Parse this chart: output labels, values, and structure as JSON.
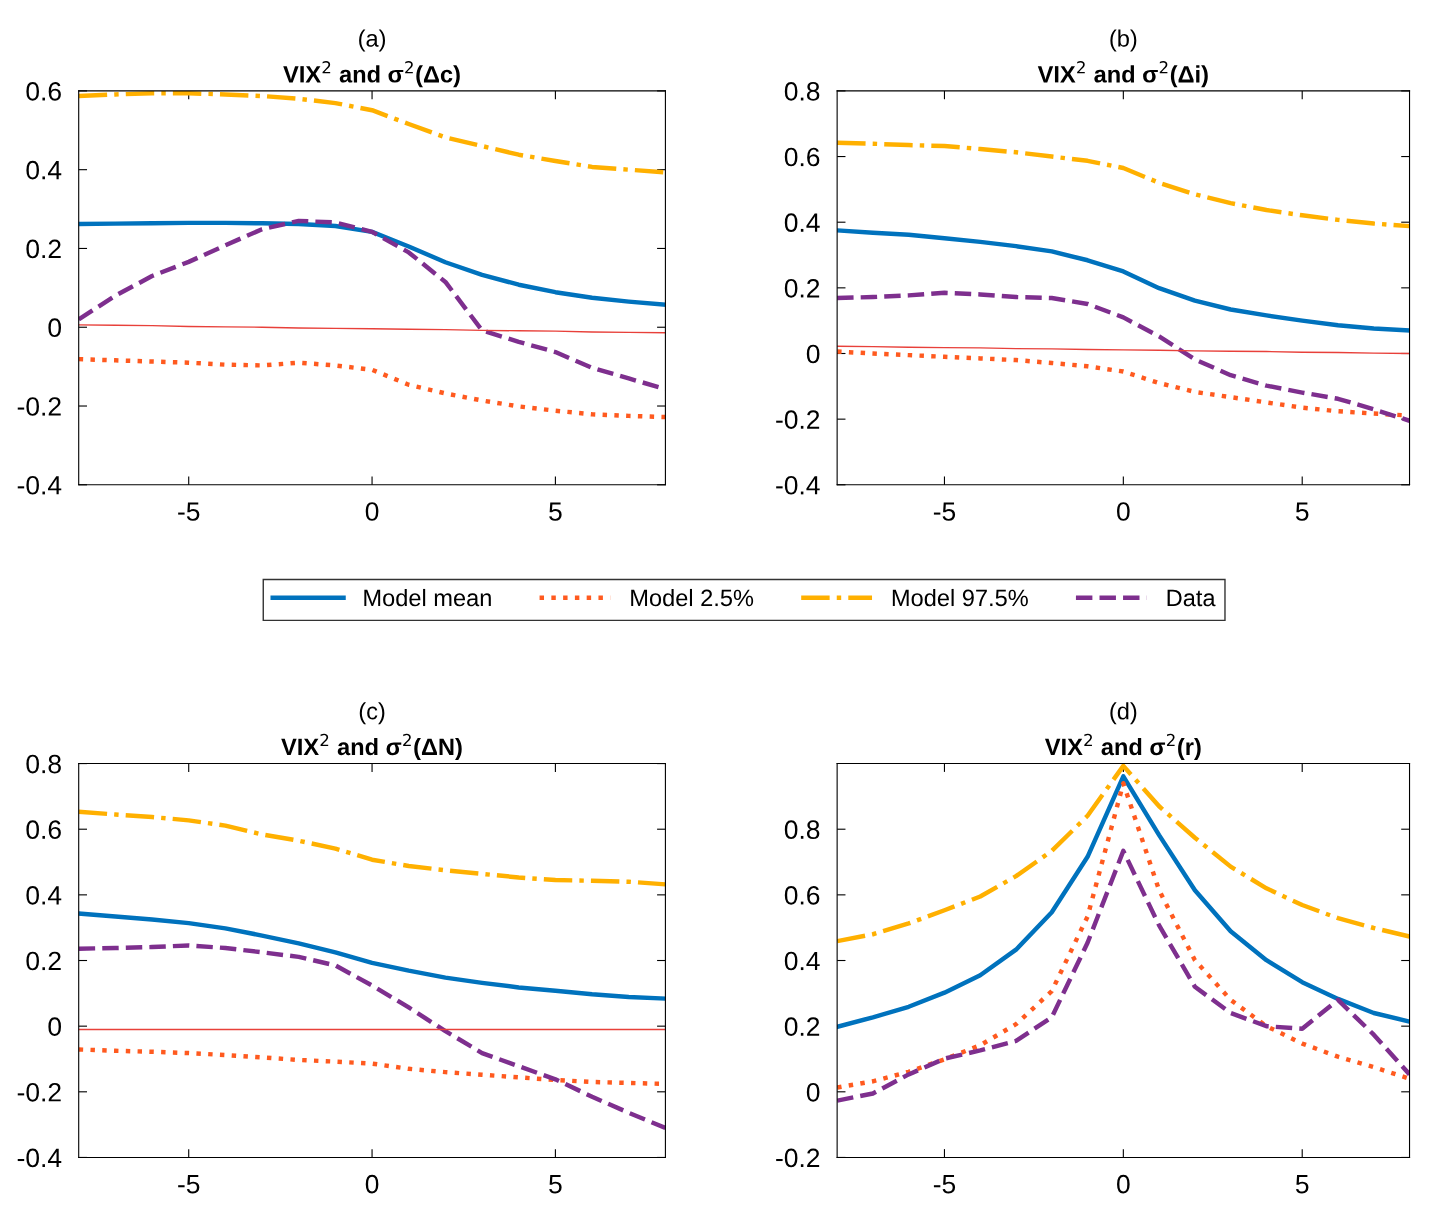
{
  "chart_data": [
    {
      "type": "line",
      "title": "(a)",
      "subtitle": "VIX$^{2}$ and σ$^{2}$(Δc)",
      "x": [
        -8,
        -7,
        -6,
        -5,
        -4,
        -3,
        -2,
        -1,
        0,
        1,
        2,
        3,
        4,
        5,
        6,
        7,
        8
      ],
      "xlim": [
        -8,
        8
      ],
      "xticks": [
        -5,
        0,
        5
      ],
      "ylim": [
        -0.4,
        0.6
      ],
      "yticks": [
        -0.4,
        -0.2,
        0,
        0.2,
        0.4,
        0.6
      ],
      "grid": false,
      "legend": "bottom",
      "series": [
        {
          "name": "Model mean",
          "color": "#0072bd",
          "line_style": "solid",
          "values": [
            0.262,
            0.263,
            0.264,
            0.265,
            0.265,
            0.264,
            0.262,
            0.257,
            0.242,
            0.205,
            0.165,
            0.133,
            0.108,
            0.089,
            0.075,
            0.065,
            0.057
          ]
        },
        {
          "name": "Model 2.5%",
          "color": "#ff5a1f",
          "line_style": "dotted",
          "values": [
            -0.081,
            -0.084,
            -0.087,
            -0.09,
            -0.095,
            -0.097,
            -0.09,
            -0.097,
            -0.108,
            -0.146,
            -0.168,
            -0.186,
            -0.201,
            -0.212,
            -0.221,
            -0.225,
            -0.228
          ]
        },
        {
          "name": "Model 97.5%",
          "color": "#ffb000",
          "line_style": "dashdot",
          "values": [
            0.587,
            0.591,
            0.594,
            0.594,
            0.591,
            0.587,
            0.58,
            0.569,
            0.551,
            0.516,
            0.482,
            0.46,
            0.438,
            0.422,
            0.407,
            0.4,
            0.393
          ]
        },
        {
          "name": "Data",
          "color": "#7e2f8e",
          "line_style": "dashed",
          "values": [
            0.02,
            0.08,
            0.13,
            0.166,
            0.208,
            0.249,
            0.27,
            0.266,
            0.242,
            0.19,
            0.115,
            -0.008,
            -0.037,
            -0.063,
            -0.103,
            -0.13,
            -0.157
          ]
        },
        {
          "color": "#e8403a",
          "line_style": "solid",
          "values": [
            0.006,
            0.005,
            0.004,
            0.002,
            0.001,
            0.0,
            -0.002,
            -0.003,
            -0.004,
            -0.005,
            -0.006,
            -0.008,
            -0.009,
            -0.01,
            -0.012,
            -0.013,
            -0.014
          ]
        }
      ]
    },
    {
      "type": "line",
      "title": "(b)",
      "subtitle": "VIX$^{2}$ and σ$^{2}$(Δi)",
      "x": [
        -8,
        -7,
        -6,
        -5,
        -4,
        -3,
        -2,
        -1,
        0,
        1,
        2,
        3,
        4,
        5,
        6,
        7,
        8
      ],
      "xlim": [
        -8,
        8
      ],
      "xticks": [
        -5,
        0,
        5
      ],
      "ylim": [
        -0.4,
        0.8
      ],
      "yticks": [
        -0.4,
        -0.2,
        0,
        0.2,
        0.4,
        0.6,
        0.8
      ],
      "grid": false,
      "series": [
        {
          "color": "#0072bd",
          "line_style": "solid",
          "values": [
            0.375,
            0.368,
            0.362,
            0.351,
            0.34,
            0.327,
            0.311,
            0.284,
            0.25,
            0.199,
            0.161,
            0.134,
            0.116,
            0.1,
            0.086,
            0.076,
            0.07
          ]
        },
        {
          "color": "#ff5a1f",
          "line_style": "dotted",
          "values": [
            0.006,
            0.0,
            -0.005,
            -0.01,
            -0.015,
            -0.02,
            -0.029,
            -0.039,
            -0.055,
            -0.09,
            -0.117,
            -0.133,
            -0.149,
            -0.165,
            -0.176,
            -0.183,
            -0.189
          ]
        },
        {
          "color": "#ffb000",
          "line_style": "dashdot",
          "values": [
            0.642,
            0.639,
            0.635,
            0.632,
            0.623,
            0.613,
            0.6,
            0.587,
            0.565,
            0.52,
            0.485,
            0.458,
            0.437,
            0.421,
            0.407,
            0.396,
            0.388
          ]
        },
        {
          "color": "#7e2f8e",
          "line_style": "dashed",
          "values": [
            0.169,
            0.172,
            0.177,
            0.185,
            0.18,
            0.172,
            0.169,
            0.151,
            0.11,
            0.052,
            -0.018,
            -0.066,
            -0.098,
            -0.119,
            -0.138,
            -0.17,
            -0.205
          ]
        },
        {
          "color": "#e8403a",
          "line_style": "solid",
          "values": [
            0.022,
            0.021,
            0.019,
            0.018,
            0.017,
            0.015,
            0.014,
            0.012,
            0.011,
            0.01,
            0.008,
            0.007,
            0.006,
            0.004,
            0.003,
            0.001,
            0.0
          ]
        }
      ]
    },
    {
      "type": "line",
      "title": "(c)",
      "subtitle": "VIX$^{2}$ and σ$^{2}$(ΔN)",
      "x": [
        -8,
        -7,
        -6,
        -5,
        -4,
        -3,
        -2,
        -1,
        0,
        1,
        2,
        3,
        4,
        5,
        6,
        7,
        8
      ],
      "xlim": [
        -8,
        8
      ],
      "xticks": [
        -5,
        0,
        5
      ],
      "ylim": [
        -0.4,
        0.8
      ],
      "yticks": [
        -0.4,
        -0.2,
        0,
        0.2,
        0.4,
        0.6,
        0.8
      ],
      "grid": false,
      "series": [
        {
          "color": "#0072bd",
          "line_style": "solid",
          "values": [
            0.343,
            0.334,
            0.325,
            0.314,
            0.298,
            0.276,
            0.252,
            0.225,
            0.193,
            0.169,
            0.148,
            0.132,
            0.118,
            0.108,
            0.097,
            0.089,
            0.084
          ]
        },
        {
          "color": "#ff5a1f",
          "line_style": "dotted",
          "values": [
            -0.071,
            -0.075,
            -0.078,
            -0.082,
            -0.088,
            -0.095,
            -0.103,
            -0.108,
            -0.114,
            -0.13,
            -0.14,
            -0.148,
            -0.156,
            -0.164,
            -0.17,
            -0.173,
            -0.176
          ]
        },
        {
          "color": "#ffb000",
          "line_style": "dashdot",
          "values": [
            0.653,
            0.645,
            0.637,
            0.627,
            0.611,
            0.584,
            0.565,
            0.541,
            0.507,
            0.488,
            0.475,
            0.464,
            0.453,
            0.445,
            0.443,
            0.44,
            0.432
          ]
        },
        {
          "color": "#7e2f8e",
          "line_style": "dashed",
          "values": [
            0.236,
            0.238,
            0.241,
            0.246,
            0.238,
            0.225,
            0.211,
            0.185,
            0.124,
            0.057,
            -0.015,
            -0.082,
            -0.122,
            -0.162,
            -0.215,
            -0.264,
            -0.31
          ]
        },
        {
          "color": "#e8403a",
          "line_style": "solid",
          "values": [
            -0.01,
            -0.01,
            -0.01,
            -0.01,
            -0.01,
            -0.01,
            -0.01,
            -0.01,
            -0.01,
            -0.01,
            -0.01,
            -0.01,
            -0.01,
            -0.01,
            -0.01,
            -0.01,
            -0.01
          ]
        }
      ]
    },
    {
      "type": "line",
      "title": "(d)",
      "subtitle": "VIX$^{2}$ and σ$^{2}$(r)",
      "x": [
        -8,
        -7,
        -6,
        -5,
        -4,
        -3,
        -2,
        -1,
        0,
        1,
        2,
        3,
        4,
        5,
        6,
        7,
        8
      ],
      "xlim": [
        -8,
        8
      ],
      "xticks": [
        -5,
        0,
        5
      ],
      "ylim": [
        -0.2,
        1.0
      ],
      "yticks": [
        -0.2,
        0,
        0.2,
        0.4,
        0.6,
        0.8
      ],
      "grid": false,
      "series": [
        {
          "color": "#0072bd",
          "line_style": "solid",
          "values": [
            0.198,
            0.227,
            0.259,
            0.302,
            0.355,
            0.433,
            0.547,
            0.716,
            0.961,
            0.782,
            0.614,
            0.489,
            0.401,
            0.334,
            0.283,
            0.24,
            0.214
          ]
        },
        {
          "color": "#ff5a1f",
          "line_style": "dotted",
          "values": [
            0.013,
            0.032,
            0.061,
            0.099,
            0.142,
            0.206,
            0.307,
            0.534,
            0.94,
            0.614,
            0.401,
            0.28,
            0.2,
            0.147,
            0.107,
            0.075,
            0.04
          ]
        },
        {
          "color": "#ffb000",
          "line_style": "dashdot",
          "values": [
            0.459,
            0.48,
            0.513,
            0.553,
            0.595,
            0.657,
            0.734,
            0.841,
            0.993,
            0.87,
            0.774,
            0.686,
            0.62,
            0.569,
            0.529,
            0.499,
            0.473
          ]
        },
        {
          "color": "#7e2f8e",
          "line_style": "dashed",
          "values": [
            -0.027,
            -0.005,
            0.053,
            0.101,
            0.126,
            0.155,
            0.227,
            0.454,
            0.734,
            0.507,
            0.32,
            0.24,
            0.2,
            0.192,
            0.28,
            0.174,
            0.053
          ]
        }
      ]
    }
  ]
}
